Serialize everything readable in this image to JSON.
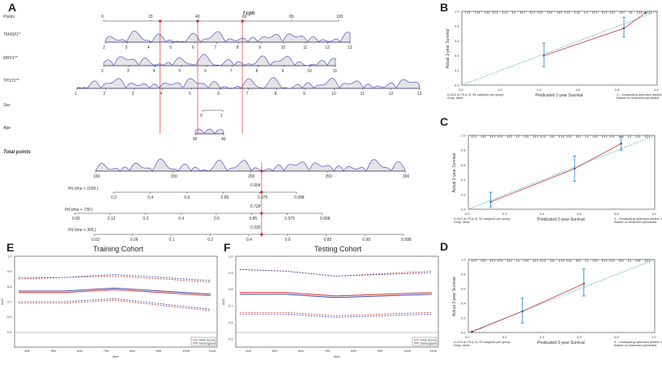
{
  "panel_labels": {
    "A": "A",
    "B": "B",
    "C": "C",
    "D": "D",
    "E": "E",
    "F": "F"
  },
  "nomogram": {
    "title": "f cph",
    "rows": [
      {
        "label": "Points",
        "ticks": [
          "0",
          "20",
          "40",
          "60",
          "80",
          "100"
        ],
        "range": [
          0,
          100
        ]
      },
      {
        "label": "TM4SF1*",
        "ticks": [
          "2",
          "3",
          "4",
          "5",
          "6",
          "7",
          "8",
          "9",
          "10",
          "11",
          "12",
          "13"
        ],
        "range": [
          2,
          13
        ]
      },
      {
        "label": "MRV1**",
        "ticks": [
          "2",
          "3",
          "4",
          "5",
          "6",
          "7",
          "8",
          "9",
          "10",
          "11"
        ],
        "range": [
          2,
          11
        ]
      },
      {
        "label": "TPST1**",
        "ticks": [
          "1",
          "2",
          "3",
          "4",
          "5",
          "6",
          "7",
          "8",
          "9",
          "10",
          "11",
          "12",
          "13"
        ],
        "range": [
          1,
          13
        ]
      },
      {
        "label": "Sex",
        "ticks": [
          "0",
          "1"
        ],
        "range": [
          0,
          1
        ]
      },
      {
        "label": "Age",
        "ticks": [
          "80",
          "40"
        ],
        "range": [
          80,
          40
        ]
      },
      {
        "label": "Total points",
        "ticks": [
          "100",
          "150",
          "200",
          "250",
          "300"
        ],
        "range": [
          80,
          300
        ]
      },
      {
        "label": "Pr( time < 1095 )",
        "ticks": [
          "0.2",
          "0.4",
          "0.6",
          "0.85",
          "0.975",
          "0.998"
        ]
      },
      {
        "label": "Pr( time < 730 )",
        "ticks": [
          "0.06",
          "0.12",
          "0.2",
          "0.4",
          "0.6",
          "0.85",
          "0.975",
          "0.998"
        ]
      },
      {
        "label": "Pr( time < 365 )",
        "ticks": [
          "0.03",
          "0.06",
          "0.1",
          "0.2",
          "0.4",
          "0.6",
          "0.85",
          "0.98",
          "0.998"
        ]
      }
    ],
    "highlight": {
      "points": [
        24,
        40,
        59
      ],
      "total": 198,
      "probs": [
        "0.954",
        "0.728",
        "0.339"
      ]
    }
  },
  "chart_data": [
    {
      "panel": "B",
      "type": "line",
      "title": "",
      "xlabel": "Predicated 1-year Survival",
      "ylabel": "Actual 1-year Survival",
      "xlim": [
        0,
        1
      ],
      "ylim": [
        0,
        1
      ],
      "ticks": [
        "0.0",
        "0.2",
        "0.4",
        "0.6",
        "0.8",
        "1.0"
      ],
      "series": [
        {
          "name": "observed",
          "x": [
            0.42,
            0.83,
            0.94
          ],
          "y": [
            0.4,
            0.77,
            0.98
          ]
        },
        {
          "name": "ideal",
          "x": [
            0,
            1
          ],
          "y": [
            0,
            1
          ]
        }
      ],
      "error_bars": [
        {
          "x": 0.42,
          "lo": 0.25,
          "hi": 0.57
        },
        {
          "x": 0.83,
          "lo": 0.65,
          "hi": 0.92
        }
      ],
      "notes_left": "n=112 d=79 p=5, 35 subjects per group\nGray: ideal",
      "notes_right": "X - resampling optimism added, B=1000\nBased on observed-predicted"
    },
    {
      "panel": "C",
      "type": "line",
      "title": "",
      "xlabel": "Predicated 2-year Survival",
      "ylabel": "Actual 2-year Survival",
      "xlim": [
        0,
        1
      ],
      "ylim": [
        0,
        1
      ],
      "ticks": [
        "0.0",
        "0.2",
        "0.4",
        "0.6",
        "0.8",
        "1.0"
      ],
      "series": [
        {
          "name": "observed",
          "x": [
            0.12,
            0.57,
            0.82
          ],
          "y": [
            0.1,
            0.55,
            0.89
          ]
        },
        {
          "name": "ideal",
          "x": [
            0,
            1
          ],
          "y": [
            0,
            1
          ]
        }
      ],
      "error_bars": [
        {
          "x": 0.12,
          "lo": 0.03,
          "hi": 0.23
        },
        {
          "x": 0.57,
          "lo": 0.38,
          "hi": 0.72
        },
        {
          "x": 0.82,
          "lo": 0.8,
          "hi": 0.98
        }
      ],
      "notes_left": "n=112 d=79 p=5, 30 subjects per group\nGray: ideal",
      "notes_right": "X - resampling optimism added, B=1000\nBased on observed-predicted"
    },
    {
      "panel": "D",
      "type": "line",
      "title": "",
      "xlabel": "Predicated 3-year Survival",
      "ylabel": "Actual 3-year Survival",
      "xlim": [
        0,
        1
      ],
      "ylim": [
        0,
        1
      ],
      "ticks": [
        "0.0",
        "0.2",
        "0.4",
        "0.6",
        "0.8",
        "1.0"
      ],
      "series": [
        {
          "name": "observed",
          "x": [
            0.02,
            0.29,
            0.62
          ],
          "y": [
            0.01,
            0.29,
            0.67
          ]
        },
        {
          "name": "ideal",
          "x": [
            0,
            1
          ],
          "y": [
            0,
            1
          ]
        }
      ],
      "error_bars": [
        {
          "x": 0.29,
          "lo": 0.13,
          "hi": 0.47
        },
        {
          "x": 0.62,
          "lo": 0.5,
          "hi": 0.87
        }
      ],
      "notes_left": "n=112 d=79 p=5, 30 subjects per group\nGray: ideal",
      "notes_right": "X - resampling optimism added, B=1000\nBased on observed-predicted"
    },
    {
      "panel": "E",
      "type": "line",
      "title": "Training Cohort",
      "xlabel": "time",
      "ylabel": "AUC",
      "x": [
        365,
        540,
        730,
        1095
      ],
      "xticks": [
        "400",
        "500",
        "600",
        "700",
        "800",
        "900",
        "1000",
        "1100"
      ],
      "yticks": [
        "0.5",
        "0.6",
        "0.7",
        "0.8",
        "0.9",
        "1.0"
      ],
      "ylim": [
        0.4,
        1.0
      ],
      "series": [
        {
          "name": "Risk Score",
          "color": "#cc3333",
          "values": [
            0.76,
            0.76,
            0.78,
            0.74
          ]
        },
        {
          "name": "Nomogram",
          "color": "#4444aa",
          "values": [
            0.77,
            0.77,
            0.79,
            0.75
          ]
        },
        {
          "name": "Risk Score CI",
          "color": "#cc3333",
          "dashed": true,
          "values": [
            0.69,
            0.69,
            0.71,
            0.64
          ]
        },
        {
          "name": "Risk Score CI",
          "color": "#cc3333",
          "dashed": true,
          "values": [
            0.85,
            0.86,
            0.87,
            0.83
          ]
        },
        {
          "name": "Nomogram CI",
          "color": "#4444aa",
          "dashed": true,
          "values": [
            0.7,
            0.7,
            0.72,
            0.65
          ]
        },
        {
          "name": "Nomogram CI",
          "color": "#4444aa",
          "dashed": true,
          "values": [
            0.86,
            0.86,
            0.88,
            0.84
          ]
        }
      ]
    },
    {
      "panel": "F",
      "type": "line",
      "title": "Testing Cohort",
      "xlabel": "time",
      "ylabel": "AUC",
      "x": [
        365,
        540,
        730,
        1095
      ],
      "xticks": [
        "400",
        "500",
        "600",
        "700",
        "800",
        "900",
        "1000",
        "1100"
      ],
      "yticks": [
        "0.5",
        "0.6",
        "0.7",
        "0.8",
        "0.9",
        "1.0"
      ],
      "ylim": [
        0.45,
        1.0
      ],
      "series": [
        {
          "name": "Risk Score",
          "color": "#cc3333",
          "values": [
            0.78,
            0.78,
            0.76,
            0.78
          ]
        },
        {
          "name": "Nomogram",
          "color": "#4444aa",
          "values": [
            0.77,
            0.77,
            0.75,
            0.77
          ]
        },
        {
          "name": "Risk Score CI",
          "color": "#cc3333",
          "dashed": true,
          "values": [
            0.66,
            0.66,
            0.64,
            0.66
          ]
        },
        {
          "name": "Risk Score CI",
          "color": "#cc3333",
          "dashed": true,
          "values": [
            0.92,
            0.91,
            0.88,
            0.91
          ]
        },
        {
          "name": "Nomogram CI",
          "color": "#4444aa",
          "dashed": true,
          "values": [
            0.65,
            0.65,
            0.63,
            0.65
          ]
        },
        {
          "name": "Nomogram CI",
          "color": "#4444aa",
          "dashed": true,
          "values": [
            0.92,
            0.91,
            0.88,
            0.9
          ]
        }
      ]
    }
  ]
}
